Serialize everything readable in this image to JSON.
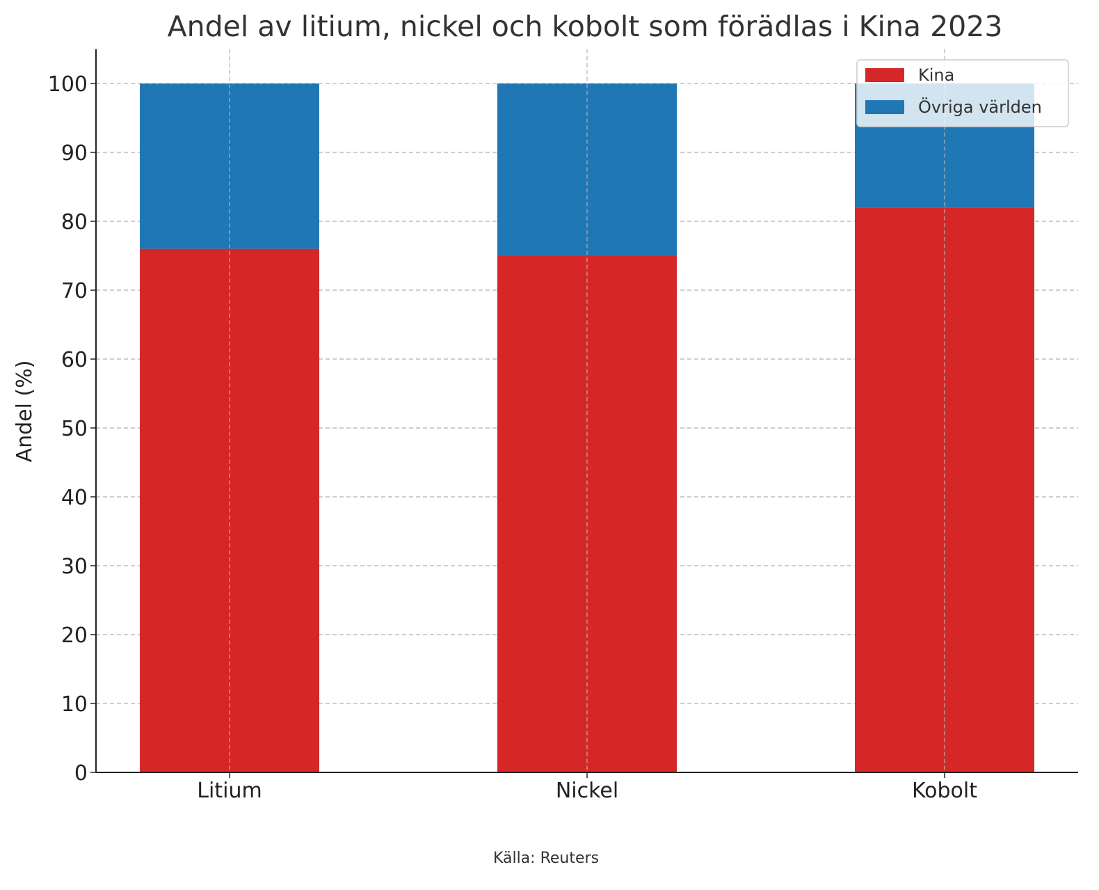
{
  "chart_data": {
    "type": "bar",
    "stacked": true,
    "title": "Andel av litium, nickel och kobolt som förädlas i Kina 2023",
    "xlabel": "",
    "ylabel": "Andel (%)",
    "ylim": [
      0,
      105
    ],
    "yticks": [
      0,
      10,
      20,
      30,
      40,
      50,
      60,
      70,
      80,
      90,
      100
    ],
    "categories": [
      "Litium",
      "Nickel",
      "Kobolt"
    ],
    "series": [
      {
        "name": "Kina",
        "values": [
          76,
          75,
          82
        ],
        "color": "#d62728"
      },
      {
        "name": "Övriga världen",
        "values": [
          24,
          25,
          18
        ],
        "color": "#1f77b4"
      }
    ],
    "grid": true,
    "legend_position": "top-right",
    "source": "Källa: Reuters"
  }
}
